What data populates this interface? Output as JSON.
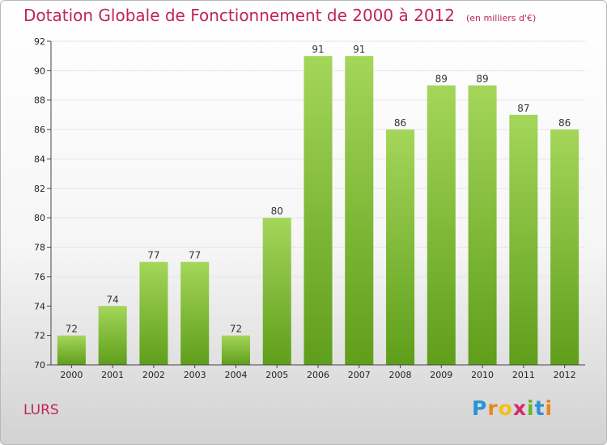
{
  "header": {
    "title": "Dotation Globale de Fonctionnement de 2000 à 2012",
    "unit": "(en milliers d'€)"
  },
  "footer": {
    "town": "LURS",
    "logo_letters": [
      "P",
      "r",
      "o",
      "x",
      "i",
      "t",
      "i"
    ],
    "logo_colors": [
      "#2b93d6",
      "#e9861c",
      "#f2bf1b",
      "#d42a6c",
      "#69b52a",
      "#2b93d6",
      "#e9861c"
    ]
  },
  "colors": {
    "bar_light": "#a4d65a",
    "bar_dark": "#5f9e1a",
    "title": "#c0245b",
    "grid": "#e6e6e6"
  },
  "chart_data": {
    "type": "bar",
    "title": "Dotation Globale de Fonctionnement de 2000 à 2012",
    "subtitle": "(en milliers d'€)",
    "xlabel": "",
    "ylabel": "",
    "categories": [
      "2000",
      "2001",
      "2002",
      "2003",
      "2004",
      "2005",
      "2006",
      "2007",
      "2008",
      "2009",
      "2010",
      "2011",
      "2012"
    ],
    "values": [
      72,
      74,
      77,
      77,
      72,
      80,
      91,
      91,
      86,
      89,
      89,
      87,
      86
    ],
    "ylim": [
      70,
      92
    ],
    "yticks": [
      70,
      72,
      74,
      76,
      78,
      80,
      82,
      84,
      86,
      88,
      90,
      92
    ],
    "grid": true,
    "legend": "none"
  }
}
